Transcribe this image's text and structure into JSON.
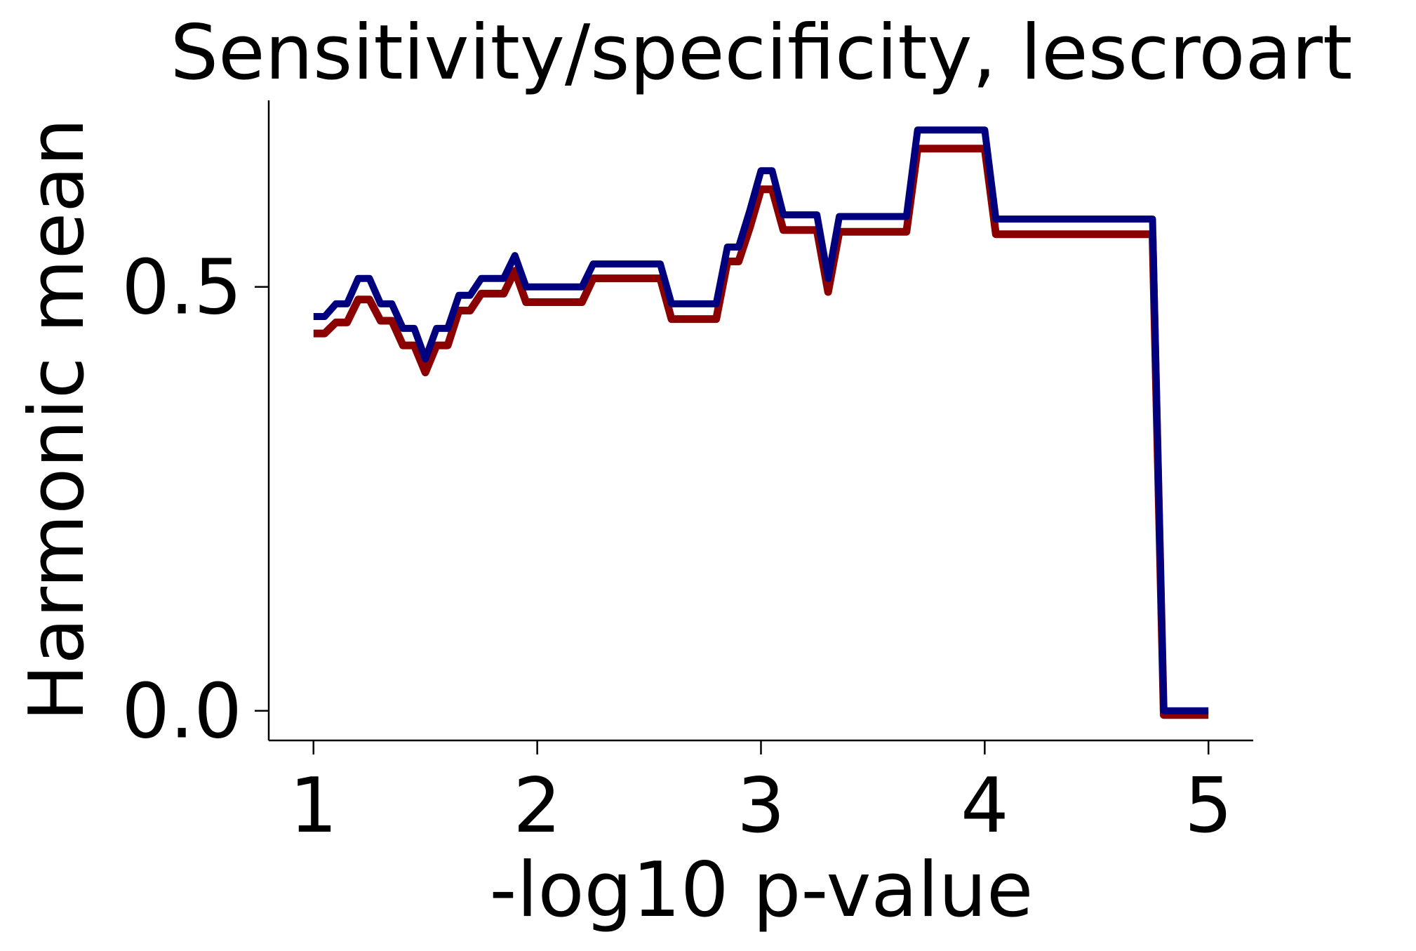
{
  "chart_data": {
    "type": "line",
    "title": "Sensitivity/specificity, lescroart",
    "xlabel": "-log10 p-value",
    "ylabel": "Harmonic mean",
    "xlim": [
      0.8,
      5.2
    ],
    "ylim": [
      -0.035,
      0.72
    ],
    "x_ticks": [
      1,
      2,
      3,
      4,
      5
    ],
    "x_tick_labels": [
      "1",
      "2",
      "3",
      "4",
      "5"
    ],
    "y_ticks": [
      0.0,
      0.5
    ],
    "y_tick_labels": [
      "0.0",
      "0.5"
    ],
    "grid": false,
    "legend": "none",
    "series": [
      {
        "color": "#8b0000",
        "x": [
          1.0,
          1.05,
          1.1,
          1.15,
          1.2,
          1.25,
          1.3,
          1.35,
          1.4,
          1.45,
          1.5,
          1.55,
          1.6,
          1.65,
          1.7,
          1.75,
          1.8,
          1.85,
          1.9,
          1.95,
          2.0,
          2.05,
          2.1,
          2.15,
          2.2,
          2.25,
          2.3,
          2.35,
          2.4,
          2.45,
          2.5,
          2.55,
          2.6,
          2.65,
          2.7,
          2.75,
          2.8,
          2.85,
          2.9,
          2.95,
          3.0,
          3.05,
          3.1,
          3.15,
          3.2,
          3.25,
          3.3,
          3.35,
          3.4,
          3.45,
          3.5,
          3.55,
          3.6,
          3.65,
          3.7,
          3.75,
          3.8,
          3.85,
          3.9,
          3.95,
          4.0,
          4.05,
          4.1,
          4.7,
          4.75,
          4.8,
          4.85,
          4.9,
          4.95,
          5.0
        ],
        "values": [
          0.45,
          0.45,
          0.463,
          0.463,
          0.49,
          0.49,
          0.465,
          0.465,
          0.436,
          0.436,
          0.404,
          0.436,
          0.436,
          0.477,
          0.477,
          0.497,
          0.497,
          0.497,
          0.524,
          0.487,
          0.487,
          0.487,
          0.487,
          0.487,
          0.487,
          0.515,
          0.515,
          0.515,
          0.515,
          0.515,
          0.515,
          0.515,
          0.467,
          0.467,
          0.467,
          0.467,
          0.467,
          0.535,
          0.535,
          0.575,
          0.62,
          0.62,
          0.572,
          0.572,
          0.572,
          0.572,
          0.499,
          0.57,
          0.57,
          0.57,
          0.57,
          0.57,
          0.57,
          0.57,
          0.668,
          0.668,
          0.668,
          0.668,
          0.668,
          0.668,
          0.668,
          0.567,
          0.567,
          0.567,
          0.567,
          0.0,
          0.0,
          0.0,
          0.0,
          0.0
        ]
      },
      {
        "color": "#00007f",
        "x": [
          1.0,
          1.05,
          1.1,
          1.15,
          1.2,
          1.25,
          1.3,
          1.35,
          1.4,
          1.45,
          1.5,
          1.55,
          1.6,
          1.65,
          1.7,
          1.75,
          1.8,
          1.85,
          1.9,
          1.95,
          2.0,
          2.05,
          2.1,
          2.15,
          2.2,
          2.25,
          2.3,
          2.35,
          2.4,
          2.45,
          2.5,
          2.55,
          2.6,
          2.65,
          2.7,
          2.75,
          2.8,
          2.85,
          2.9,
          2.95,
          3.0,
          3.05,
          3.1,
          3.15,
          3.2,
          3.25,
          3.3,
          3.35,
          3.4,
          3.45,
          3.5,
          3.55,
          3.6,
          3.65,
          3.7,
          3.75,
          3.8,
          3.85,
          3.9,
          3.95,
          4.0,
          4.05,
          4.1,
          4.7,
          4.75,
          4.8,
          4.85,
          4.9,
          4.95,
          5.0
        ],
        "values": [
          0.465,
          0.465,
          0.48,
          0.48,
          0.51,
          0.51,
          0.48,
          0.48,
          0.451,
          0.451,
          0.415,
          0.451,
          0.451,
          0.49,
          0.49,
          0.51,
          0.51,
          0.51,
          0.537,
          0.5,
          0.5,
          0.5,
          0.5,
          0.5,
          0.5,
          0.527,
          0.527,
          0.527,
          0.527,
          0.527,
          0.527,
          0.527,
          0.48,
          0.48,
          0.48,
          0.48,
          0.48,
          0.547,
          0.547,
          0.59,
          0.637,
          0.637,
          0.585,
          0.585,
          0.585,
          0.585,
          0.51,
          0.583,
          0.583,
          0.583,
          0.583,
          0.583,
          0.583,
          0.583,
          0.685,
          0.685,
          0.685,
          0.685,
          0.685,
          0.685,
          0.685,
          0.58,
          0.58,
          0.58,
          0.58,
          0.0,
          0.0,
          0.0,
          0.0,
          0.0
        ]
      }
    ]
  }
}
